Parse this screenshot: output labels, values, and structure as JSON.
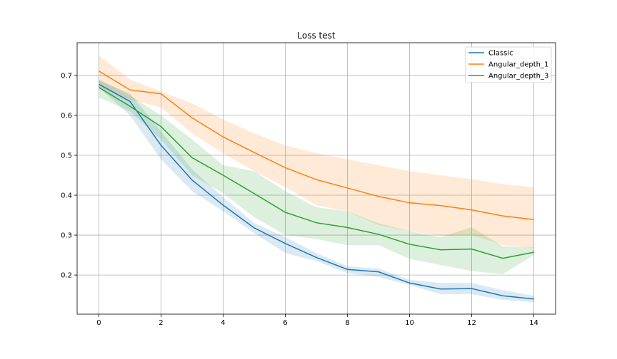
{
  "chart_data": {
    "type": "line",
    "title": "Loss test",
    "xlabel": "",
    "ylabel": "",
    "xlim": [
      -0.7,
      14.7
    ],
    "ylim": [
      0.102,
      0.782
    ],
    "x_ticks": [
      0,
      2,
      4,
      6,
      8,
      10,
      12,
      14
    ],
    "y_ticks": [
      0.2,
      0.3,
      0.4,
      0.5,
      0.6,
      0.7
    ],
    "grid": true,
    "legend_position": "top-right",
    "x": [
      0,
      1,
      2,
      3,
      4,
      5,
      6,
      7,
      8,
      9,
      10,
      11,
      12,
      13,
      14
    ],
    "series": [
      {
        "name": "Classic",
        "color": "#1f77b4",
        "values": [
          0.678,
          0.635,
          0.525,
          0.438,
          0.375,
          0.318,
          0.279,
          0.244,
          0.214,
          0.208,
          0.18,
          0.165,
          0.166,
          0.148,
          0.14
        ],
        "lower": [
          0.67,
          0.6,
          0.49,
          0.41,
          0.36,
          0.305,
          0.255,
          0.235,
          0.205,
          0.195,
          0.175,
          0.152,
          0.152,
          0.138,
          0.132
        ],
        "upper": [
          0.688,
          0.655,
          0.56,
          0.465,
          0.395,
          0.33,
          0.295,
          0.255,
          0.222,
          0.216,
          0.188,
          0.18,
          0.18,
          0.162,
          0.148
        ]
      },
      {
        "name": "Angular_depth_1",
        "color": "#ff7f0e",
        "values": [
          0.711,
          0.664,
          0.654,
          0.594,
          0.546,
          0.507,
          0.469,
          0.439,
          0.418,
          0.397,
          0.381,
          0.374,
          0.363,
          0.348,
          0.339
        ],
        "lower": [
          0.67,
          0.64,
          0.62,
          0.555,
          0.505,
          0.46,
          0.42,
          0.375,
          0.36,
          0.325,
          0.31,
          0.298,
          0.3,
          0.275,
          0.268
        ],
        "upper": [
          0.75,
          0.69,
          0.66,
          0.63,
          0.59,
          0.555,
          0.525,
          0.505,
          0.49,
          0.475,
          0.46,
          0.45,
          0.44,
          0.428,
          0.42
        ]
      },
      {
        "name": "Angular_depth_3",
        "color": "#2ca02c",
        "values": [
          0.67,
          0.623,
          0.572,
          0.494,
          0.45,
          0.404,
          0.357,
          0.331,
          0.319,
          0.302,
          0.277,
          0.263,
          0.265,
          0.242,
          0.257
        ],
        "lower": [
          0.645,
          0.61,
          0.54,
          0.45,
          0.405,
          0.345,
          0.3,
          0.29,
          0.275,
          0.275,
          0.24,
          0.225,
          0.21,
          0.202,
          0.25
        ],
        "upper": [
          0.69,
          0.65,
          0.6,
          0.54,
          0.475,
          0.46,
          0.41,
          0.37,
          0.36,
          0.33,
          0.31,
          0.295,
          0.32,
          0.272,
          0.27
        ]
      }
    ]
  }
}
